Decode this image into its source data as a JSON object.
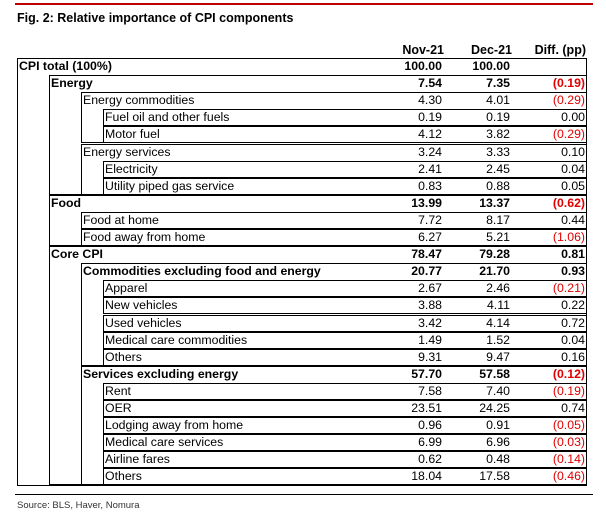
{
  "title": "Fig. 2: Relative importance of CPI components",
  "headers": {
    "col1": "Nov-21",
    "col2": "Dec-21",
    "col3": "Diff. (pp)"
  },
  "rows": [
    {
      "label": "CPI total (100%)",
      "level": 0,
      "bold": true,
      "nov": "100.00",
      "dec": "100.00",
      "diff": "",
      "neg": false
    },
    {
      "label": "Energy",
      "level": 1,
      "bold": true,
      "nov": "7.54",
      "dec": "7.35",
      "diff": "(0.19)",
      "neg": true
    },
    {
      "label": "Energy commodities",
      "level": 2,
      "bold": false,
      "nov": "4.30",
      "dec": "4.01",
      "diff": "(0.29)",
      "neg": true
    },
    {
      "label": "Fuel oil and other fuels",
      "level": 3,
      "bold": false,
      "nov": "0.19",
      "dec": "0.19",
      "diff": "0.00",
      "neg": false
    },
    {
      "label": "Motor fuel",
      "level": 3,
      "bold": false,
      "nov": "4.12",
      "dec": "3.82",
      "diff": "(0.29)",
      "neg": true
    },
    {
      "label": "Energy services",
      "level": 2,
      "bold": false,
      "nov": "3.24",
      "dec": "3.33",
      "diff": "0.10",
      "neg": false
    },
    {
      "label": "Electricity",
      "level": 3,
      "bold": false,
      "nov": "2.41",
      "dec": "2.45",
      "diff": "0.04",
      "neg": false
    },
    {
      "label": "Utility piped gas service",
      "level": 3,
      "bold": false,
      "nov": "0.83",
      "dec": "0.88",
      "diff": "0.05",
      "neg": false
    },
    {
      "label": "Food",
      "level": 1,
      "bold": true,
      "nov": "13.99",
      "dec": "13.37",
      "diff": "(0.62)",
      "neg": true
    },
    {
      "label": "Food at home",
      "level": 2,
      "bold": false,
      "nov": "7.72",
      "dec": "8.17",
      "diff": "0.44",
      "neg": false
    },
    {
      "label": "Food away from home",
      "level": 2,
      "bold": false,
      "nov": "6.27",
      "dec": "5.21",
      "diff": "(1.06)",
      "neg": true
    },
    {
      "label": "Core CPI",
      "level": 1,
      "bold": true,
      "nov": "78.47",
      "dec": "79.28",
      "diff": "0.81",
      "neg": false
    },
    {
      "label": "Commodities excluding food and energy",
      "level": 2,
      "bold": true,
      "nov": "20.77",
      "dec": "21.70",
      "diff": "0.93",
      "neg": false
    },
    {
      "label": "Apparel",
      "level": 3,
      "bold": false,
      "nov": "2.67",
      "dec": "2.46",
      "diff": "(0.21)",
      "neg": true
    },
    {
      "label": "New vehicles",
      "level": 3,
      "bold": false,
      "nov": "3.88",
      "dec": "4.11",
      "diff": "0.22",
      "neg": false
    },
    {
      "label": "Used vehicles",
      "level": 3,
      "bold": false,
      "nov": "3.42",
      "dec": "4.14",
      "diff": "0.72",
      "neg": false
    },
    {
      "label": "Medical care commodities",
      "level": 3,
      "bold": false,
      "nov": "1.49",
      "dec": "1.52",
      "diff": "0.04",
      "neg": false
    },
    {
      "label": "Others",
      "level": 3,
      "bold": false,
      "nov": "9.31",
      "dec": "9.47",
      "diff": "0.16",
      "neg": false
    },
    {
      "label": "Services excluding energy",
      "level": 2,
      "bold": true,
      "nov": "57.70",
      "dec": "57.58",
      "diff": "(0.12)",
      "neg": true
    },
    {
      "label": "Rent",
      "level": 3,
      "bold": false,
      "nov": "7.58",
      "dec": "7.40",
      "diff": "(0.19)",
      "neg": true
    },
    {
      "label": "OER",
      "level": 3,
      "bold": false,
      "nov": "23.51",
      "dec": "24.25",
      "diff": "0.74",
      "neg": false
    },
    {
      "label": "Lodging away from home",
      "level": 3,
      "bold": false,
      "nov": "0.96",
      "dec": "0.91",
      "diff": "(0.05)",
      "neg": true
    },
    {
      "label": "Medical care services",
      "level": 3,
      "bold": false,
      "nov": "6.99",
      "dec": "6.96",
      "diff": "(0.03)",
      "neg": true
    },
    {
      "label": "Airline fares",
      "level": 3,
      "bold": false,
      "nov": "0.62",
      "dec": "0.48",
      "diff": "(0.14)",
      "neg": true
    },
    {
      "label": "Others",
      "level": 3,
      "bold": false,
      "nov": "18.04",
      "dec": "17.58",
      "diff": "(0.46)",
      "neg": true
    }
  ],
  "source": "Source: BLS, Haver, Nomura",
  "colors": {
    "negative": "#e00000",
    "accent_rule": "#c00000"
  }
}
